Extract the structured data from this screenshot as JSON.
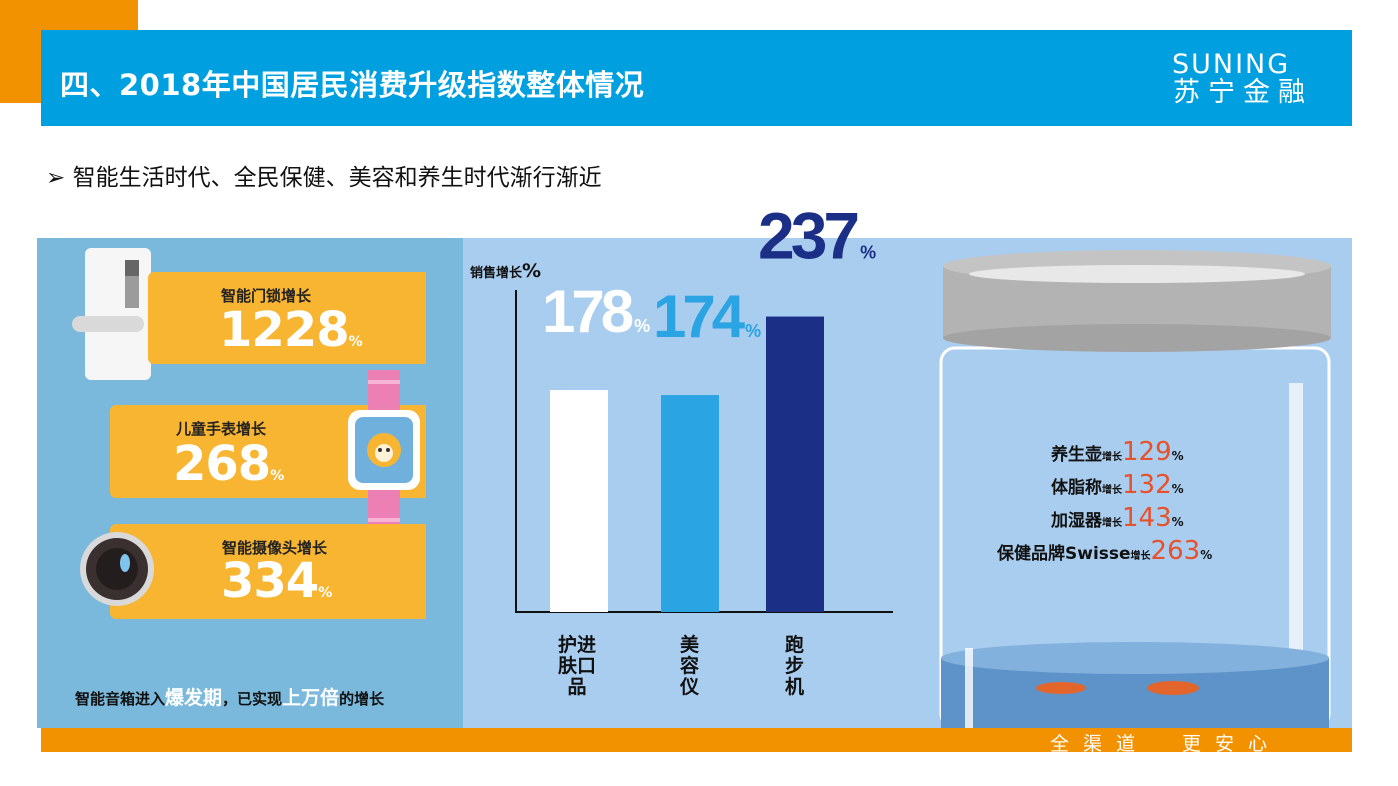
{
  "header": {
    "title": "四、2018年中国居民消费升级指数整体情况",
    "brand_en": "SUNING",
    "brand_cn": "苏宁金融"
  },
  "subtitle": "➢ 智能生活时代、全民保健、美容和养生时代渐行渐近",
  "left_cards": [
    {
      "label": "智能门锁增长",
      "value": "1228",
      "unit": "%"
    },
    {
      "label": "儿童手表增长",
      "value": "268",
      "unit": "%"
    },
    {
      "label": "智能摄像头增长",
      "value": "334",
      "unit": "%"
    }
  ],
  "left_note": {
    "prefix": "智能音箱进入",
    "em1": "爆发期",
    "mid": "，已实现",
    "em2": "上万倍",
    "suffix": "的增长"
  },
  "chart_data": {
    "type": "bar",
    "ylabel": "销售增长",
    "ylabel_unit": "%",
    "categories": [
      "护肤品",
      "美容仪",
      "跑步机"
    ],
    "category_lines": [
      [
        "护进",
        "肤口",
        "品"
      ],
      [
        "美",
        "容",
        "仪"
      ],
      [
        "跑",
        "步",
        "机"
      ]
    ],
    "values": [
      178,
      174,
      237
    ],
    "value_labels": [
      "178",
      "174",
      "237"
    ],
    "unit": "%",
    "colors": [
      "#ffffff",
      "#2aa4e2",
      "#1c2f86"
    ],
    "label_colors": [
      "#ffffff",
      "#2aa4e2",
      "#1c2f86"
    ],
    "ylim": [
      0,
      300
    ],
    "grid": false
  },
  "jar_items": [
    {
      "name": "养生壶",
      "suffix": "增长",
      "value": "129",
      "unit": "%"
    },
    {
      "name": "体脂称",
      "suffix": "增长",
      "value": "132",
      "unit": "%"
    },
    {
      "name": "加湿器",
      "suffix": "增长",
      "value": "143",
      "unit": "%"
    },
    {
      "name": "保健品牌Swisse",
      "suffix": "增长",
      "value": "263",
      "unit": "%"
    }
  ],
  "footer": {
    "slogan": "全渠道　更安心"
  },
  "colors": {
    "accent_orange": "#f39200",
    "header_blue": "#00a0e0",
    "card_yellow": "#f8b531",
    "jar_number": "#e8502a"
  }
}
